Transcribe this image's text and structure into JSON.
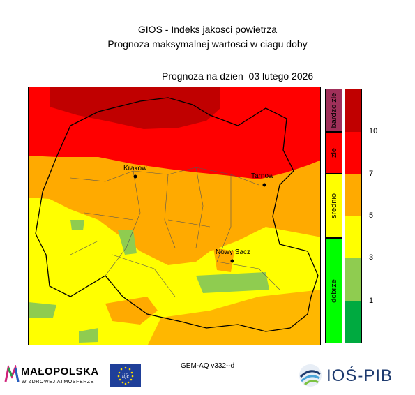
{
  "title_line1": "GIOS - Indeks jakosci powietrza",
  "title_line2": "Prognoza maksymalnej wartosci w ciagu doby",
  "forecast_date": "Prognoza na dzien  03 lutego 2026",
  "map": {
    "region": "Małopolska",
    "cities": [
      {
        "name": "Krakow"
      },
      {
        "name": "Tarnow"
      },
      {
        "name": "Nowy Sacz"
      }
    ],
    "zone_colors": {
      "bardzo_zle": "#c00000",
      "zle": "#ff0000",
      "srednio": "#ffaa00",
      "light_yellow": "#ffff00",
      "light_green": "#8fcc50",
      "dobrze": "#00cc00"
    }
  },
  "legend": {
    "categories": [
      {
        "label": "bardzo zle",
        "color": "#a0305a"
      },
      {
        "label": "zle",
        "color": "#ff0000"
      },
      {
        "label": "srednio",
        "color": "#ffff00"
      },
      {
        "label": "dobrze",
        "color": "#00ff00"
      }
    ],
    "scale_colors": [
      "#c00000",
      "#ff0000",
      "#ffaa00",
      "#ffff00",
      "#8fcc50",
      "#00aa40"
    ],
    "ticks": [
      "10",
      "7",
      "5",
      "3",
      "1"
    ]
  },
  "model_label": "GEM-AQ v332--d",
  "logos": {
    "malopolska": "MAŁOPOLSKA",
    "malopolska_sub": "W ZDROWEJ ATMOSFERZE",
    "life": "life",
    "ios": "IOŚ-PIB"
  }
}
